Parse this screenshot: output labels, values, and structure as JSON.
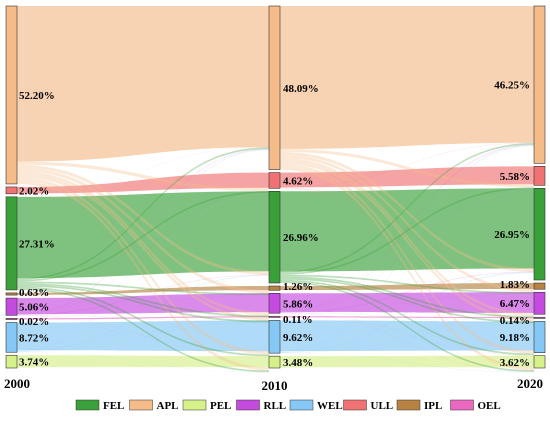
{
  "chart_data": {
    "type": "sankey",
    "title": "",
    "years": [
      "2000",
      "2010",
      "2020"
    ],
    "categories_in_stack_order": [
      "APL",
      "ULL",
      "FEL",
      "IPL",
      "RLL",
      "OEL",
      "WEL",
      "PEL"
    ],
    "legend_order": [
      "FEL",
      "APL",
      "PEL",
      "RLL",
      "WEL",
      "ULL",
      "IPL",
      "OEL"
    ],
    "legend_placement": "bottom",
    "colors": {
      "FEL": "#3aa13a",
      "APL": "#f5bc8a",
      "PEL": "#d6f08a",
      "RLL": "#c54be0",
      "WEL": "#86c8f5",
      "ULL": "#f07272",
      "IPL": "#b78242",
      "OEL": "#ea68c0"
    },
    "values": {
      "2000": {
        "APL": 52.2,
        "ULL": 2.02,
        "FEL": 27.31,
        "IPL": 0.63,
        "RLL": 5.06,
        "OEL": 0.02,
        "WEL": 8.72,
        "PEL": 3.74
      },
      "2010": {
        "APL": 48.09,
        "ULL": 4.62,
        "FEL": 26.96,
        "IPL": 1.26,
        "RLL": 5.86,
        "OEL": 0.11,
        "WEL": 9.62,
        "PEL": 3.48
      },
      "2020": {
        "APL": 46.25,
        "ULL": 5.58,
        "FEL": 26.95,
        "IPL": 1.83,
        "RLL": 6.47,
        "OEL": 0.14,
        "WEL": 9.18,
        "PEL": 3.62
      }
    },
    "value_labels": {
      "2000": {
        "APL": "52.20%",
        "ULL": "2.02%",
        "FEL": "27.31%",
        "IPL": "0.63%",
        "RLL": "5.06%",
        "OEL": "0.02%",
        "WEL": "8.72%",
        "PEL": "3.74%"
      },
      "2010": {
        "APL": "48.09%",
        "ULL": "4.62%",
        "FEL": "26.96%",
        "IPL": "1.26%",
        "RLL": "5.86%",
        "OEL": "0.11%",
        "WEL": "9.62%",
        "PEL": "3.48%"
      },
      "2020": {
        "APL": "46.25%",
        "ULL": "5.58%",
        "FEL": "26.95%",
        "IPL": "1.83%",
        "RLL": "6.47%",
        "OEL": "0.14%",
        "WEL": "9.18%",
        "PEL": "3.62%"
      }
    }
  }
}
